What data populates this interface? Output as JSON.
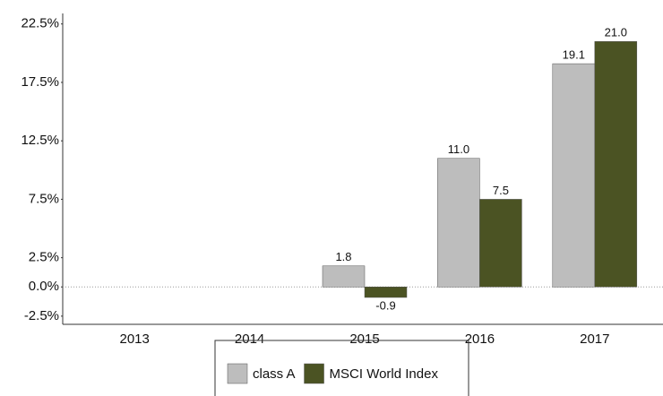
{
  "chart_data": {
    "type": "bar",
    "categories": [
      "2013",
      "2014",
      "2015",
      "2016",
      "2017"
    ],
    "series": [
      {
        "name": "class A",
        "color": "#bdbdbd",
        "values": [
          null,
          null,
          1.8,
          11.0,
          19.1
        ],
        "value_labels": [
          null,
          null,
          "1.8",
          "11.0",
          "19.1"
        ]
      },
      {
        "name": "MSCI World Index",
        "color": "#4b5323",
        "values": [
          null,
          null,
          -0.9,
          7.5,
          21.0
        ],
        "value_labels": [
          null,
          null,
          "-0.9",
          "7.5",
          "21.0"
        ]
      }
    ],
    "ylim": [
      -3.2,
      23.4
    ],
    "yticks": [
      {
        "value": 22.5,
        "label": "22.5%"
      },
      {
        "value": 17.5,
        "label": "17.5%"
      },
      {
        "value": 12.5,
        "label": "12.5%"
      },
      {
        "value": 7.5,
        "label": "7.5%"
      },
      {
        "value": 2.5,
        "label": "2.5%"
      },
      {
        "value": 0,
        "label": "0.0%"
      },
      {
        "value": -2.5,
        "label": "-2.5%"
      }
    ],
    "legend": "bottom"
  }
}
